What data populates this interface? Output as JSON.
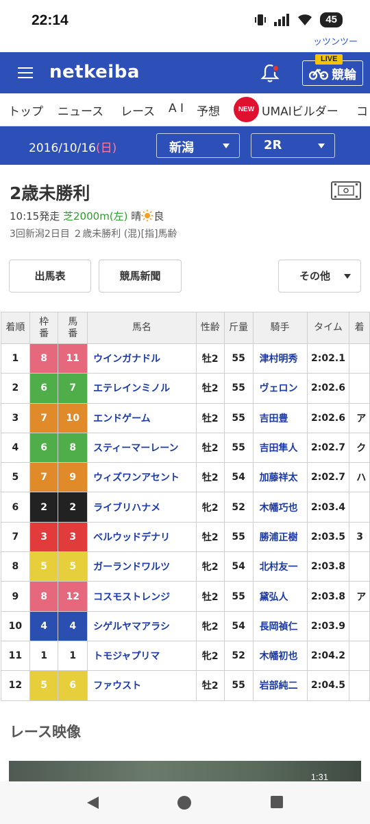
{
  "status": {
    "time": "22:14",
    "battery": "45",
    "peek_text": "ッツンツー"
  },
  "header": {
    "logo": "netkeiba",
    "live_badge": "LIVE",
    "keirin_label": "競輪"
  },
  "nav": {
    "items": [
      "トップ",
      "ニュース",
      "レース",
      "A I",
      "予想",
      "UMAIビルダー",
      "コ"
    ],
    "new_badge": "NEW"
  },
  "datebar": {
    "date": "2016/10/16",
    "dow": "(日)",
    "venue": "新潟",
    "race_no": "2R"
  },
  "race": {
    "title": "2歳未勝利",
    "start": "10:15発走",
    "course": "芝2000m(左)",
    "weather": "晴",
    "going": "良",
    "conditions": "3回新潟2日目 ２歳未勝利 (混)[指]馬齢"
  },
  "buttons": {
    "shutuba": "出馬表",
    "shinbun": "競馬新聞",
    "other": "その他"
  },
  "table": {
    "headers": [
      "着順",
      "枠番",
      "馬番",
      "馬名",
      "性齢",
      "斤量",
      "騎手",
      "タイム",
      "着"
    ],
    "rows": [
      {
        "rank": "1",
        "waku": "8",
        "umaban": "11",
        "name": "ウインガナドル",
        "sex_age": "牡2",
        "weight": "55",
        "jockey": "津村明秀",
        "time": "2:02.1",
        "extra": ""
      },
      {
        "rank": "2",
        "waku": "6",
        "umaban": "7",
        "name": "エテレインミノル",
        "sex_age": "牡2",
        "weight": "55",
        "jockey": "ヴェロン",
        "time": "2:02.6",
        "extra": ""
      },
      {
        "rank": "3",
        "waku": "7",
        "umaban": "10",
        "name": "エンドゲーム",
        "sex_age": "牡2",
        "weight": "55",
        "jockey": "吉田豊",
        "time": "2:02.6",
        "extra": "ア"
      },
      {
        "rank": "4",
        "waku": "6",
        "umaban": "8",
        "name": "スティーマーレーン",
        "sex_age": "牡2",
        "weight": "55",
        "jockey": "吉田隼人",
        "time": "2:02.7",
        "extra": "ク"
      },
      {
        "rank": "5",
        "waku": "7",
        "umaban": "9",
        "name": "ウィズワンアセント",
        "sex_age": "牡2",
        "weight": "54",
        "jockey": "加藤祥太",
        "time": "2:02.7",
        "extra": "ハ"
      },
      {
        "rank": "6",
        "waku": "2",
        "umaban": "2",
        "name": "ライブリハナメ",
        "sex_age": "牝2",
        "weight": "52",
        "jockey": "木幡巧也",
        "time": "2:03.4",
        "extra": ""
      },
      {
        "rank": "7",
        "waku": "3",
        "umaban": "3",
        "name": "ベルウッドデナリ",
        "sex_age": "牡2",
        "weight": "55",
        "jockey": "勝浦正樹",
        "time": "2:03.5",
        "extra": "3"
      },
      {
        "rank": "8",
        "waku": "5",
        "umaban": "5",
        "name": "ガーランドワルツ",
        "sex_age": "牝2",
        "weight": "54",
        "jockey": "北村友一",
        "time": "2:03.8",
        "extra": ""
      },
      {
        "rank": "9",
        "waku": "8",
        "umaban": "12",
        "name": "コスモストレンジ",
        "sex_age": "牡2",
        "weight": "55",
        "jockey": "黛弘人",
        "time": "2:03.8",
        "extra": "ア"
      },
      {
        "rank": "10",
        "waku": "4",
        "umaban": "4",
        "name": "シゲルヤマアラシ",
        "sex_age": "牝2",
        "weight": "54",
        "jockey": "長岡禎仁",
        "time": "2:03.9",
        "extra": ""
      },
      {
        "rank": "11",
        "waku": "1",
        "umaban": "1",
        "name": "トモジャプリマ",
        "sex_age": "牝2",
        "weight": "52",
        "jockey": "木幡初也",
        "time": "2:04.2",
        "extra": ""
      },
      {
        "rank": "12",
        "waku": "5",
        "umaban": "6",
        "name": "ファウスト",
        "sex_age": "牡2",
        "weight": "55",
        "jockey": "岩部純二",
        "time": "2:04.5",
        "extra": ""
      }
    ]
  },
  "waku_colors": {
    "1": {
      "bg": "#ffffff",
      "fg": "#222222"
    },
    "2": {
      "bg": "#222222",
      "fg": "#ffffff"
    },
    "3": {
      "bg": "#e23b3b",
      "fg": "#ffffff"
    },
    "4": {
      "bg": "#2a4fb0",
      "fg": "#ffffff"
    },
    "5": {
      "bg": "#e6cf3a",
      "fg": "#ffffff"
    },
    "6": {
      "bg": "#4fae4a",
      "fg": "#ffffff"
    },
    "7": {
      "bg": "#e08a2a",
      "fg": "#ffffff"
    },
    "8": {
      "bg": "#e5687c",
      "fg": "#ffffff"
    }
  },
  "video": {
    "section_title": "レース映像",
    "timecode": "1:31"
  },
  "colors": {
    "brand": "#2d50b8"
  }
}
